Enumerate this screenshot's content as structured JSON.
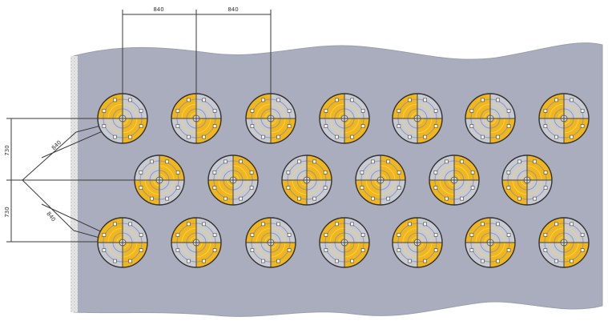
{
  "diagram": {
    "dimensions": {
      "top_left": "840",
      "top_right": "840",
      "left_upper": "730",
      "left_lower": "730",
      "diag_upper": "840",
      "diag_lower": "840"
    },
    "colors": {
      "background": "#ffffff",
      "panel": "#a9adbd",
      "panel_edge": "#d6d6d6",
      "gray_ring": "#c8cbd3",
      "gray_ring_dark": "#8f94a4",
      "yellow": "#f1b61b",
      "yellow_light": "#f7d25a",
      "dim_line": "#3a3a3a"
    },
    "pattern": {
      "rows": 3,
      "outer_row_count": 7,
      "middle_row_count": 6
    }
  }
}
